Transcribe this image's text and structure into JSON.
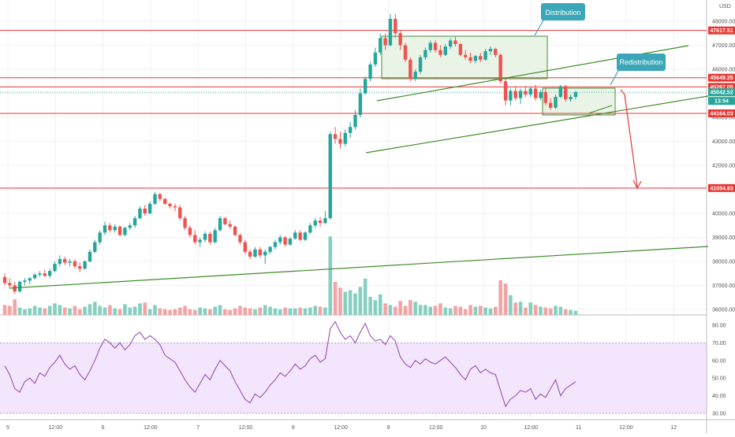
{
  "chart_data": {
    "type": "candlestick",
    "currency": "USD",
    "x_ticks": [
      "5",
      "12:00",
      "6",
      "12:00",
      "7",
      "12:00",
      "8",
      "12:00",
      "9",
      "12:00",
      "10",
      "12:00",
      "11",
      "12:00",
      "12"
    ],
    "y_ticks": [
      "48000.00",
      "47000.00",
      "46000.00",
      "45000.00",
      "44000.00",
      "43000.00",
      "42000.00",
      "41000.00",
      "40000.00",
      "39000.00",
      "38000.00",
      "37000.00",
      "36000.00"
    ],
    "ylim": [
      35800,
      48500
    ],
    "price_levels": [
      {
        "label": "47617.51",
        "value": 47617.51
      },
      {
        "label": "45649.35",
        "value": 45649.35
      },
      {
        "label": "45267.05",
        "value": 45267.05
      },
      {
        "label": "44164.03",
        "value": 44164.03
      },
      {
        "label": "41054.93",
        "value": 41054.93
      }
    ],
    "last_price": {
      "label": "45042.52",
      "value": 45042.52
    },
    "countdown": "13:54",
    "annotations": [
      {
        "text": "Distribution"
      },
      {
        "text": "Redistribution"
      }
    ],
    "candles_ohlc": [
      [
        37350,
        37500,
        37000,
        37100
      ],
      [
        37100,
        37300,
        36900,
        37000
      ],
      [
        37000,
        37150,
        36650,
        36750
      ],
      [
        36750,
        37200,
        36700,
        37150
      ],
      [
        37150,
        37300,
        37000,
        37200
      ],
      [
        37200,
        37350,
        37050,
        37300
      ],
      [
        37300,
        37500,
        37250,
        37450
      ],
      [
        37450,
        37600,
        37350,
        37500
      ],
      [
        37500,
        37650,
        37350,
        37400
      ],
      [
        37400,
        37700,
        37300,
        37600
      ],
      [
        37600,
        38000,
        37550,
        37900
      ],
      [
        37900,
        38250,
        37800,
        38100
      ],
      [
        38100,
        38200,
        37850,
        37950
      ],
      [
        37950,
        38100,
        37800,
        38000
      ],
      [
        38000,
        38100,
        37700,
        37800
      ],
      [
        37800,
        37950,
        37550,
        37700
      ],
      [
        37700,
        38050,
        37650,
        38000
      ],
      [
        38000,
        38500,
        37950,
        38400
      ],
      [
        38400,
        38900,
        38350,
        38800
      ],
      [
        38800,
        39300,
        38700,
        39200
      ],
      [
        39200,
        39650,
        39100,
        39500
      ],
      [
        39500,
        39600,
        39200,
        39300
      ],
      [
        39300,
        39550,
        39200,
        39450
      ],
      [
        39450,
        39500,
        39050,
        39100
      ],
      [
        39100,
        39450,
        39050,
        39400
      ],
      [
        39400,
        39600,
        39300,
        39500
      ],
      [
        39500,
        39900,
        39400,
        39800
      ],
      [
        39800,
        40300,
        39750,
        40200
      ],
      [
        40200,
        40350,
        39900,
        40000
      ],
      [
        40000,
        40500,
        39950,
        40400
      ],
      [
        40400,
        40900,
        40350,
        40800
      ],
      [
        40800,
        40850,
        40500,
        40600
      ],
      [
        40600,
        40650,
        40350,
        40400
      ],
      [
        40400,
        40450,
        40200,
        40300
      ],
      [
        40300,
        40400,
        40100,
        40250
      ],
      [
        40250,
        40350,
        39700,
        39800
      ],
      [
        39800,
        39900,
        39300,
        39400
      ],
      [
        39400,
        39500,
        39000,
        39100
      ],
      [
        39100,
        39300,
        38700,
        38800
      ],
      [
        38800,
        39000,
        38600,
        38900
      ],
      [
        38900,
        39250,
        38800,
        39150
      ],
      [
        39150,
        39250,
        38700,
        38800
      ],
      [
        38800,
        39400,
        38750,
        39300
      ],
      [
        39300,
        39900,
        39250,
        39800
      ],
      [
        39800,
        39850,
        39500,
        39550
      ],
      [
        39550,
        39700,
        39350,
        39450
      ],
      [
        39450,
        39500,
        39050,
        39100
      ],
      [
        39100,
        39150,
        38700,
        38800
      ],
      [
        38800,
        38900,
        38300,
        38400
      ],
      [
        38400,
        38500,
        38100,
        38200
      ],
      [
        38200,
        38600,
        38150,
        38500
      ],
      [
        38500,
        38600,
        38150,
        38250
      ],
      [
        38250,
        38500,
        37900,
        38400
      ],
      [
        38400,
        38650,
        38300,
        38600
      ],
      [
        38600,
        38900,
        38500,
        38800
      ],
      [
        38800,
        39100,
        38700,
        39000
      ],
      [
        39000,
        39050,
        38600,
        38700
      ],
      [
        38700,
        39000,
        38650,
        38950
      ],
      [
        38950,
        39300,
        38900,
        39200
      ],
      [
        39200,
        39300,
        38850,
        38900
      ],
      [
        38900,
        39250,
        38850,
        39200
      ],
      [
        39200,
        39600,
        39150,
        39500
      ],
      [
        39500,
        39800,
        39400,
        39700
      ],
      [
        39700,
        39850,
        39450,
        39600
      ],
      [
        39600,
        40100,
        39550,
        39800
      ],
      [
        39800,
        43400,
        39750,
        43300
      ],
      [
        43300,
        43600,
        42900,
        43100
      ],
      [
        43100,
        43400,
        42700,
        42900
      ],
      [
        42900,
        43500,
        42800,
        43350
      ],
      [
        43350,
        43800,
        43150,
        43600
      ],
      [
        43600,
        44300,
        43500,
        44100
      ],
      [
        44100,
        45200,
        44000,
        45000
      ],
      [
        45000,
        45700,
        44950,
        45600
      ],
      [
        45600,
        46300,
        45500,
        46200
      ],
      [
        46200,
        46900,
        46100,
        46700
      ],
      [
        46700,
        47500,
        46600,
        47300
      ],
      [
        47300,
        47500,
        46800,
        47000
      ],
      [
        47000,
        48300,
        46950,
        48100
      ],
      [
        48100,
        48300,
        47300,
        47500
      ],
      [
        47500,
        47600,
        46800,
        47000
      ],
      [
        47000,
        47100,
        46300,
        46400
      ],
      [
        46400,
        46500,
        45500,
        45600
      ],
      [
        45600,
        46000,
        45500,
        45900
      ],
      [
        45900,
        46600,
        45800,
        46500
      ],
      [
        46500,
        46900,
        46400,
        46800
      ],
      [
        46800,
        47200,
        46700,
        47100
      ],
      [
        47100,
        47200,
        46700,
        46800
      ],
      [
        46800,
        47000,
        46500,
        46600
      ],
      [
        46600,
        47050,
        46550,
        46950
      ],
      [
        46950,
        47300,
        46850,
        47200
      ],
      [
        47200,
        47350,
        46950,
        47050
      ],
      [
        47050,
        47100,
        46550,
        46600
      ],
      [
        46600,
        46800,
        46400,
        46500
      ],
      [
        46500,
        46700,
        46250,
        46350
      ],
      [
        46350,
        46600,
        46250,
        46550
      ],
      [
        46550,
        46700,
        46300,
        46400
      ],
      [
        46400,
        46850,
        46350,
        46750
      ],
      [
        46750,
        46950,
        46600,
        46850
      ],
      [
        46850,
        46900,
        46500,
        46600
      ],
      [
        46600,
        46650,
        45400,
        45500
      ],
      [
        45500,
        45600,
        44500,
        44700
      ],
      [
        44700,
        45200,
        44500,
        45100
      ],
      [
        45100,
        45300,
        44700,
        44800
      ],
      [
        44800,
        45200,
        44550,
        45100
      ],
      [
        45100,
        45300,
        44850,
        44950
      ],
      [
        44950,
        45250,
        44850,
        45200
      ],
      [
        45200,
        45350,
        44700,
        44800
      ],
      [
        44800,
        45150,
        44700,
        45050
      ],
      [
        45050,
        45200,
        44500,
        44600
      ],
      [
        44600,
        44800,
        44300,
        44400
      ],
      [
        44400,
        44950,
        44350,
        44850
      ],
      [
        44850,
        45350,
        44800,
        45300
      ],
      [
        45300,
        45350,
        44650,
        44750
      ],
      [
        44750,
        44950,
        44650,
        44850
      ],
      [
        44850,
        45100,
        44750,
        45050
      ]
    ],
    "volume": [
      12,
      11,
      19,
      9,
      7,
      8,
      11,
      9,
      8,
      11,
      14,
      12,
      9,
      8,
      11,
      7,
      10,
      13,
      16,
      11,
      9,
      12,
      8,
      7,
      13,
      9,
      10,
      14,
      15,
      7,
      12,
      8,
      7,
      6,
      7,
      9,
      11,
      7,
      6,
      9,
      8,
      7,
      10,
      12,
      7,
      6,
      8,
      11,
      9,
      8,
      7,
      9,
      12,
      10,
      8,
      7,
      9,
      8,
      8,
      9,
      8,
      9,
      11,
      10,
      9,
      95,
      40,
      33,
      28,
      30,
      26,
      34,
      44,
      22,
      18,
      25,
      14,
      12,
      10,
      17,
      11,
      18,
      16,
      12,
      12,
      10,
      11,
      14,
      9,
      8,
      11,
      10,
      7,
      12,
      10,
      11,
      9,
      8,
      10,
      42,
      38,
      24,
      15,
      16,
      9,
      15,
      12,
      10,
      9,
      8,
      11,
      10,
      7,
      6,
      5
    ],
    "rsi": {
      "y_ticks": [
        "80.00",
        "70.00",
        "60.00",
        "50.00",
        "40.00",
        "30.00"
      ],
      "overbought": 70,
      "oversold": 30,
      "values": [
        57,
        52,
        44,
        42,
        48,
        50,
        47,
        53,
        51,
        56,
        59,
        63,
        58,
        55,
        57,
        52,
        49,
        54,
        60,
        67,
        72,
        70,
        67,
        70,
        66,
        69,
        74,
        76,
        72,
        74,
        72,
        69,
        63,
        61,
        59,
        54,
        49,
        45,
        42,
        47,
        52,
        49,
        55,
        60,
        57,
        54,
        48,
        43,
        38,
        36,
        41,
        39,
        42,
        46,
        49,
        53,
        51,
        54,
        58,
        55,
        57,
        61,
        63,
        59,
        61,
        78,
        82,
        76,
        72,
        74,
        70,
        76,
        81,
        74,
        71,
        72,
        69,
        74,
        71,
        62,
        58,
        56,
        60,
        58,
        61,
        59,
        58,
        60,
        62,
        59,
        56,
        52,
        49,
        55,
        57,
        53,
        55,
        53,
        52,
        43,
        34,
        38,
        40,
        43,
        42,
        44,
        38,
        41,
        39,
        44,
        49,
        40,
        44,
        46,
        48
      ]
    }
  }
}
